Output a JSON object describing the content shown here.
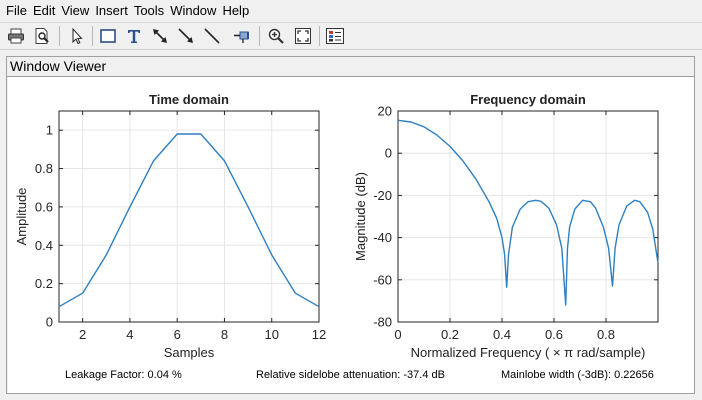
{
  "menu": [
    "File",
    "Edit",
    "View",
    "Insert",
    "Tools",
    "Window",
    "Help"
  ],
  "toolbar": [
    {
      "icon": "print-icon"
    },
    {
      "icon": "print-preview-icon"
    },
    {
      "icon": "select-arrow-icon"
    },
    {
      "icon": "rectangle-icon"
    },
    {
      "icon": "insert-text-icon"
    },
    {
      "icon": "double-arrow-icon"
    },
    {
      "icon": "arrow-icon"
    },
    {
      "icon": "line-icon"
    },
    {
      "icon": "pin-icon"
    },
    {
      "icon": "zoom-in-icon"
    },
    {
      "icon": "full-view-icon"
    },
    {
      "icon": "legend-icon"
    }
  ],
  "panel": {
    "title": "Window Viewer"
  },
  "status": {
    "leakage": "Leakage Factor: 0.04 %",
    "sidelobe": "Relative sidelobe attenuation: -37.4 dB",
    "mainlobe": "Mainlobe width (-3dB): 0.22656"
  },
  "colors": {
    "line": "#2f7fc1",
    "grid": "#e6e6e6",
    "axis": "#262626"
  },
  "chart_data": [
    {
      "type": "line",
      "title": "Time domain",
      "xlabel": "Samples",
      "ylabel": "Amplitude",
      "xlim": [
        1,
        12
      ],
      "ylim": [
        0,
        1.1
      ],
      "xticks": [
        2,
        4,
        6,
        8,
        10,
        12
      ],
      "yticks": [
        0,
        0.2,
        0.4,
        0.6,
        0.8,
        1
      ],
      "ytick_labels": [
        "0",
        "0.2",
        "0.4",
        "0.6",
        "0.8",
        "1"
      ],
      "grid": true,
      "series": [
        {
          "x": [
            1,
            2,
            3,
            4,
            5,
            6,
            7,
            8,
            9,
            10,
            11,
            12
          ],
          "y": [
            0.08,
            0.15,
            0.35,
            0.6,
            0.84,
            0.98,
            0.98,
            0.84,
            0.6,
            0.35,
            0.15,
            0.08
          ]
        }
      ]
    },
    {
      "type": "line",
      "title": "Frequency domain",
      "xlabel": "Normalized Frequency  ( × π rad/sample)",
      "ylabel": "Magnitude (dB)",
      "xlim": [
        0,
        1
      ],
      "ylim": [
        -80,
        20
      ],
      "xticks": [
        0,
        0.2,
        0.4,
        0.6,
        0.8
      ],
      "xtick_labels": [
        "0",
        "0.2",
        "0.4",
        "0.6",
        "0.8"
      ],
      "yticks": [
        -80,
        -60,
        -40,
        -20,
        0,
        20
      ],
      "grid": true,
      "series": [
        {
          "x": [
            0,
            0.05,
            0.1,
            0.15,
            0.2,
            0.25,
            0.3,
            0.35,
            0.38,
            0.4,
            0.41,
            0.418,
            0.425,
            0.44,
            0.47,
            0.5,
            0.53,
            0.55,
            0.58,
            0.61,
            0.63,
            0.645,
            0.652,
            0.66,
            0.68,
            0.71,
            0.74,
            0.76,
            0.79,
            0.81,
            0.825,
            0.835,
            0.85,
            0.88,
            0.91,
            0.93,
            0.96,
            0.98,
            1.0
          ],
          "y": [
            15.6,
            14.8,
            12.5,
            8.6,
            3.2,
            -3.7,
            -12.3,
            -23.0,
            -31.0,
            -40.0,
            -48.0,
            -63.5,
            -48.0,
            -35.0,
            -26.5,
            -23.0,
            -22.3,
            -22.8,
            -26.0,
            -34.0,
            -45.0,
            -72.0,
            -45.0,
            -35.0,
            -26.5,
            -22.3,
            -23.0,
            -26.0,
            -35.0,
            -45.0,
            -63.0,
            -45.0,
            -34.0,
            -25.0,
            -22.3,
            -23.0,
            -28.0,
            -36.0,
            -52.0
          ]
        }
      ]
    }
  ]
}
